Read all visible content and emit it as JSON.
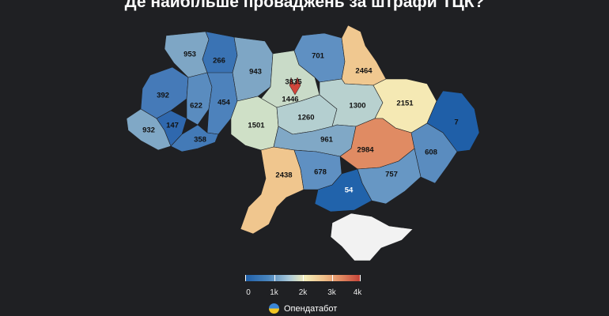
{
  "title": "Де найбільше проваджень за штрафи ТЦК?",
  "regions": [
    {
      "id": "volyn",
      "value": 953,
      "color": "#7ea6c5"
    },
    {
      "id": "rivne",
      "value": 266,
      "color": "#3a73b4"
    },
    {
      "id": "zhytomyr",
      "value": 943,
      "color": "#7ea6c5"
    },
    {
      "id": "kyiv-oblast",
      "value": 1446,
      "color": "#c9dbc8"
    },
    {
      "id": "kyiv-city",
      "value": 3835,
      "color": "#d1453a"
    },
    {
      "id": "chernihiv",
      "value": 701,
      "color": "#5f90c2"
    },
    {
      "id": "sumy",
      "value": 2464,
      "color": "#f0c890"
    },
    {
      "id": "lviv",
      "value": 392,
      "color": "#457ab8"
    },
    {
      "id": "ternopil",
      "value": 622,
      "color": "#5a8cbf"
    },
    {
      "id": "khmelnytskyi",
      "value": 454,
      "color": "#4d82bc"
    },
    {
      "id": "zakarpattia",
      "value": 932,
      "color": "#80a8c6"
    },
    {
      "id": "ivano-frankivsk",
      "value": 147,
      "color": "#2f68ae"
    },
    {
      "id": "chernivtsi",
      "value": 358,
      "color": "#437ab7"
    },
    {
      "id": "vinnytsia",
      "value": 1501,
      "color": "#cfe0c7"
    },
    {
      "id": "cherkasy",
      "value": 1260,
      "color": "#b4cfd0"
    },
    {
      "id": "poltava",
      "value": 1300,
      "color": "#b8d1cf"
    },
    {
      "id": "kharkiv",
      "value": 2151,
      "color": "#f5e9b4"
    },
    {
      "id": "luhansk",
      "value": 7,
      "color": "#1f5fa8"
    },
    {
      "id": "kirovohrad",
      "value": 961,
      "color": "#80a8c6"
    },
    {
      "id": "dnipropetrovsk",
      "value": 2984,
      "color": "#e08b63"
    },
    {
      "id": "donetsk",
      "value": 608,
      "color": "#5a8cbf"
    },
    {
      "id": "odesa",
      "value": 2438,
      "color": "#f0c68e"
    },
    {
      "id": "mykolaiv",
      "value": 678,
      "color": "#5f90c2"
    },
    {
      "id": "zaporizhzhia",
      "value": 757,
      "color": "#6797c4"
    },
    {
      "id": "kherson",
      "value": 54,
      "color": "#2163ab"
    },
    {
      "id": "crimea",
      "value": null,
      "color": "#f2f2f2"
    }
  ],
  "legend": {
    "ticks": [
      "0",
      "1k",
      "2k",
      "3k",
      "4k"
    ],
    "tick_values": [
      0,
      1000,
      2000,
      3000,
      4000
    ],
    "max": 4000
  },
  "brand": {
    "name": "Опендатабот",
    "logo": "ukraine-flag-circle-icon"
  }
}
